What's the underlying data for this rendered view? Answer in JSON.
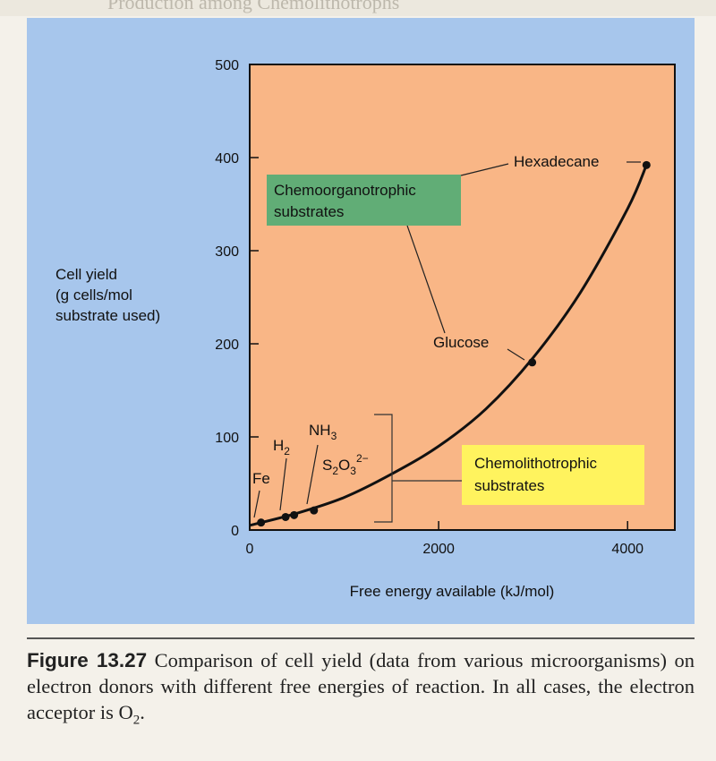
{
  "chart_data": {
    "type": "line",
    "xlabel": "Free energy available (kJ/mol)",
    "ylabel_lines": [
      "Cell yield",
      "(g cells/mol",
      "substrate used)"
    ],
    "xlim": [
      0,
      4500
    ],
    "ylim": [
      0,
      500
    ],
    "x_ticks": [
      "0",
      "2000",
      "4000"
    ],
    "x_tick_values": [
      0,
      2000,
      4000
    ],
    "y_ticks": [
      "0",
      "100",
      "200",
      "300",
      "400",
      "500"
    ],
    "y_tick_values": [
      0,
      100,
      200,
      300,
      400,
      500
    ],
    "curve": [
      [
        0,
        5
      ],
      [
        500,
        18
      ],
      [
        1000,
        35
      ],
      [
        1500,
        60
      ],
      [
        2000,
        90
      ],
      [
        2500,
        130
      ],
      [
        3000,
        185
      ],
      [
        3500,
        255
      ],
      [
        4000,
        345
      ],
      [
        4200,
        392
      ]
    ],
    "points": [
      {
        "label": "Fe",
        "x": 120,
        "y": 8
      },
      {
        "label": "H",
        "sub": "2",
        "x": 380,
        "y": 14
      },
      {
        "label": "",
        "x": 470,
        "y": 16
      },
      {
        "label": "NH",
        "sub": "3",
        "x": 680,
        "y": 21
      },
      {
        "label": "Glucose",
        "x": 2990,
        "y": 180
      },
      {
        "label": "Hexadecane",
        "x": 4200,
        "y": 392
      }
    ],
    "s2o3_label": {
      "base": "S",
      "sub1": "2",
      "mid": "O",
      "sub2": "3",
      "sup": "2−"
    },
    "group_labels": {
      "chemoorganotrophic": [
        "Chemoorganotrophic",
        "substrates"
      ],
      "chemolithotrophic": [
        "Chemolithotrophic",
        "substrates"
      ]
    },
    "colors": {
      "panel": "#a7c6ec",
      "plot_bg": "#f9b686",
      "organo_box": "#61ad76",
      "litho_box": "#fff35e",
      "curve": "#111111"
    }
  },
  "caption": {
    "figure_label": "Figure 13.27",
    "text_before_o2": " Comparison of cell yield (data from various microorganisms) on electron donors with different free energies of reaction. In all cases, the electron acceptor is O",
    "o2_subscript": "2",
    "text_end": "."
  },
  "header_ghost_text": "Production among Chemolithotrophs"
}
